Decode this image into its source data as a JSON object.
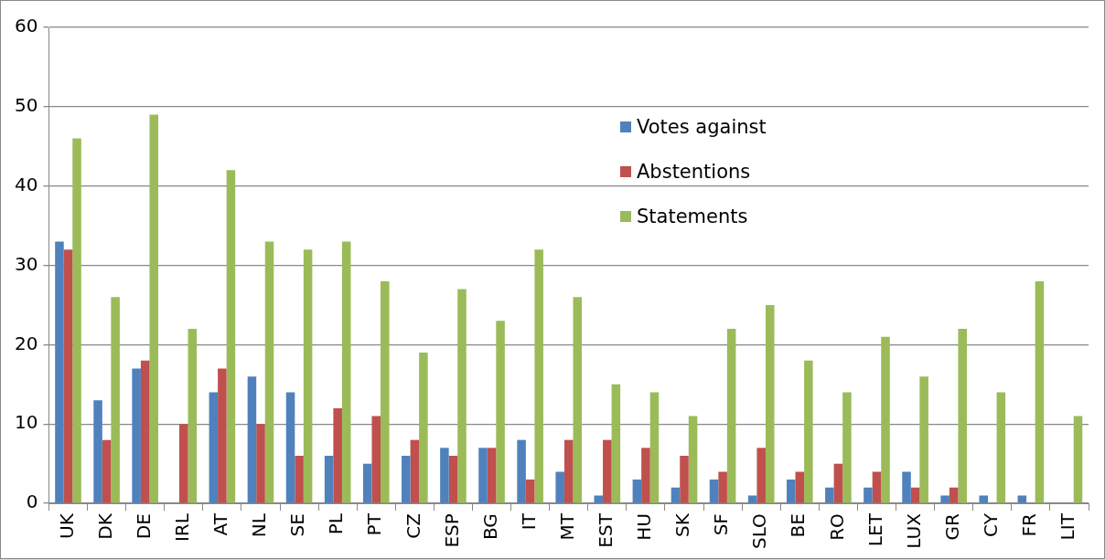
{
  "chart_data": {
    "type": "bar",
    "categories": [
      "UK",
      "DK",
      "DE",
      "IRL",
      "AT",
      "NL",
      "SE",
      "PL",
      "PT",
      "CZ",
      "ESP",
      "BG",
      "IT",
      "MT",
      "EST",
      "HU",
      "SK",
      "SF",
      "SLO",
      "BE",
      "RO",
      "LET",
      "LUX",
      "GR",
      "CY",
      "FR",
      "LIT"
    ],
    "series": [
      {
        "name": "Votes against",
        "color": "#4f81bd",
        "values": [
          33,
          13,
          17,
          0,
          14,
          16,
          14,
          6,
          5,
          6,
          7,
          7,
          8,
          4,
          1,
          3,
          2,
          3,
          1,
          3,
          2,
          2,
          4,
          1,
          1,
          1,
          0
        ]
      },
      {
        "name": "Abstentions",
        "color": "#c0504d",
        "values": [
          32,
          8,
          18,
          10,
          17,
          10,
          6,
          12,
          11,
          8,
          6,
          7,
          3,
          8,
          8,
          7,
          6,
          4,
          7,
          4,
          5,
          4,
          2,
          2,
          0,
          0,
          0
        ]
      },
      {
        "name": "Statements",
        "color": "#9bbb59",
        "values": [
          46,
          26,
          49,
          22,
          42,
          33,
          32,
          33,
          28,
          19,
          27,
          23,
          32,
          26,
          15,
          14,
          11,
          22,
          25,
          18,
          14,
          21,
          16,
          22,
          14,
          28,
          11
        ]
      }
    ],
    "ylim": [
      0,
      60
    ],
    "yticks": [
      0,
      10,
      20,
      30,
      40,
      50,
      60
    ],
    "grid": "y",
    "legend": "top right"
  }
}
